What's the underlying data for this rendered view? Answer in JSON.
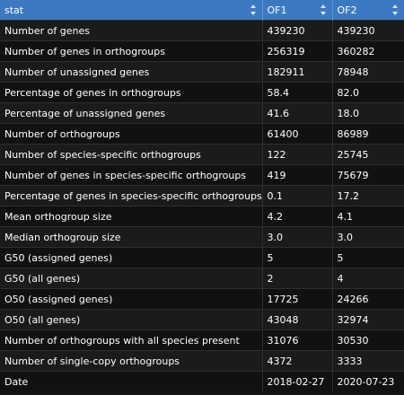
{
  "table": {
    "columns": [
      "stat",
      "OF1",
      "OF2"
    ],
    "rows": [
      [
        "Number of genes",
        "439230",
        "439230"
      ],
      [
        "Number of genes in orthogroups",
        "256319",
        "360282"
      ],
      [
        "Number of unassigned genes",
        "182911",
        "78948"
      ],
      [
        "Percentage of genes in orthogroups",
        "58.4",
        "82.0"
      ],
      [
        "Percentage of unassigned genes",
        "41.6",
        "18.0"
      ],
      [
        "Number of orthogroups",
        "61400",
        "86989"
      ],
      [
        "Number of species-specific orthogroups",
        "122",
        "25745"
      ],
      [
        "Number of genes in species-specific orthogroups",
        "419",
        "75679"
      ],
      [
        "Percentage of genes in species-specific orthogroups",
        "0.1",
        "17.2"
      ],
      [
        "Mean orthogroup size",
        "4.2",
        "4.1"
      ],
      [
        "Median orthogroup size",
        "3.0",
        "3.0"
      ],
      [
        "G50 (assigned genes)",
        "5",
        "5"
      ],
      [
        "G50 (all genes)",
        "2",
        "4"
      ],
      [
        "O50 (assigned genes)",
        "17725",
        "24266"
      ],
      [
        "O50 (all genes)",
        "43048",
        "32974"
      ],
      [
        "Number of orthogroups with all species present",
        "31076",
        "30530"
      ],
      [
        "Number of single-copy orthogroups",
        "4372",
        "3333"
      ],
      [
        "Date",
        "2018-02-27",
        "2020-07-23"
      ]
    ]
  },
  "colors": {
    "header_bg": "#3b7ac2",
    "row_odd": "#1b1b1b",
    "row_even": "#111111",
    "text": "#ffffff"
  },
  "icons": {
    "sort": "sort-updown-icon"
  }
}
